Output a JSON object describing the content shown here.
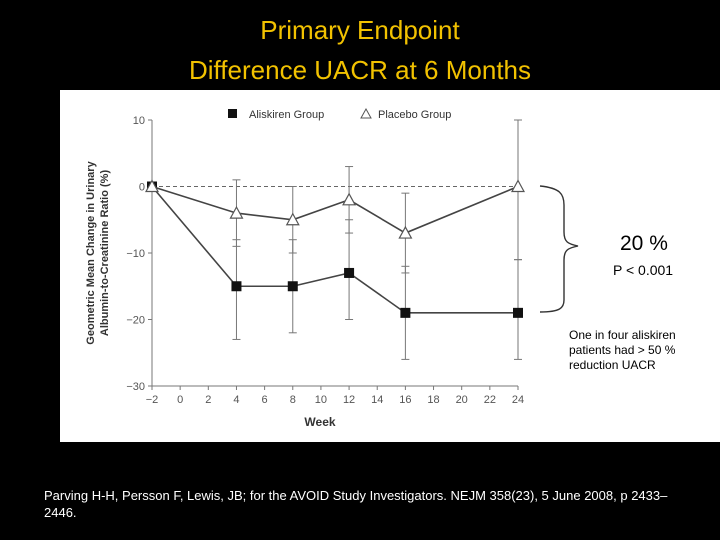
{
  "header": {
    "title_line1": "Primary Endpoint",
    "title_line2": "Difference UACR at 6 Months"
  },
  "annotations": {
    "difference": "20 %",
    "p_value": "P < 0.001",
    "note": "One in four aliskiren patients had > 50 % reduction UACR"
  },
  "citation": "Parving H-H, Persson F, Lewis, JB; for the AVOID Study Investigators. NEJM 358(23), 5 June 2008, p 2433–2446.",
  "colors": {
    "title": "#f2c200",
    "background": "#000000",
    "panel": "#ffffff"
  },
  "chart_data": {
    "type": "line",
    "xlabel": "Week",
    "ylabel_line1": "Geometric Mean Change in Urinary",
    "ylabel_line2": "Albumin-to-Creatinine Ratio (%)",
    "xlim": [
      -2,
      24
    ],
    "ylim": [
      -30,
      10
    ],
    "x_ticks": [
      -2,
      0,
      2,
      4,
      6,
      8,
      10,
      12,
      14,
      16,
      18,
      20,
      22,
      24
    ],
    "y_ticks": [
      10,
      0,
      -10,
      -20,
      -30
    ],
    "x_tick_labels": [
      "−2",
      "0",
      "2",
      "4",
      "6",
      "8",
      "10",
      "12",
      "14",
      "16",
      "18",
      "20",
      "22",
      "24"
    ],
    "y_tick_labels": [
      "10",
      "0",
      "−10",
      "−20",
      "−30"
    ],
    "reference_line": 0,
    "legend_position": "top",
    "series": [
      {
        "name": "Aliskiren Group",
        "marker": "square",
        "x": [
          -2,
          4,
          8,
          12,
          16,
          24
        ],
        "y": [
          0,
          -15,
          -15,
          -13,
          -19,
          -19
        ],
        "err_low": [
          0,
          -23,
          -22,
          -20,
          -26,
          -26
        ],
        "err_high": [
          0,
          -8,
          -8,
          -5,
          -12,
          -11
        ]
      },
      {
        "name": "Placebo Group",
        "marker": "triangle",
        "x": [
          -2,
          4,
          8,
          12,
          16,
          24
        ],
        "y": [
          0,
          -4,
          -5,
          -2,
          -7,
          0
        ],
        "err_low": [
          0,
          -9,
          -10,
          -7,
          -13,
          -11
        ],
        "err_high": [
          0,
          1,
          0,
          3,
          -1,
          10
        ]
      }
    ]
  }
}
